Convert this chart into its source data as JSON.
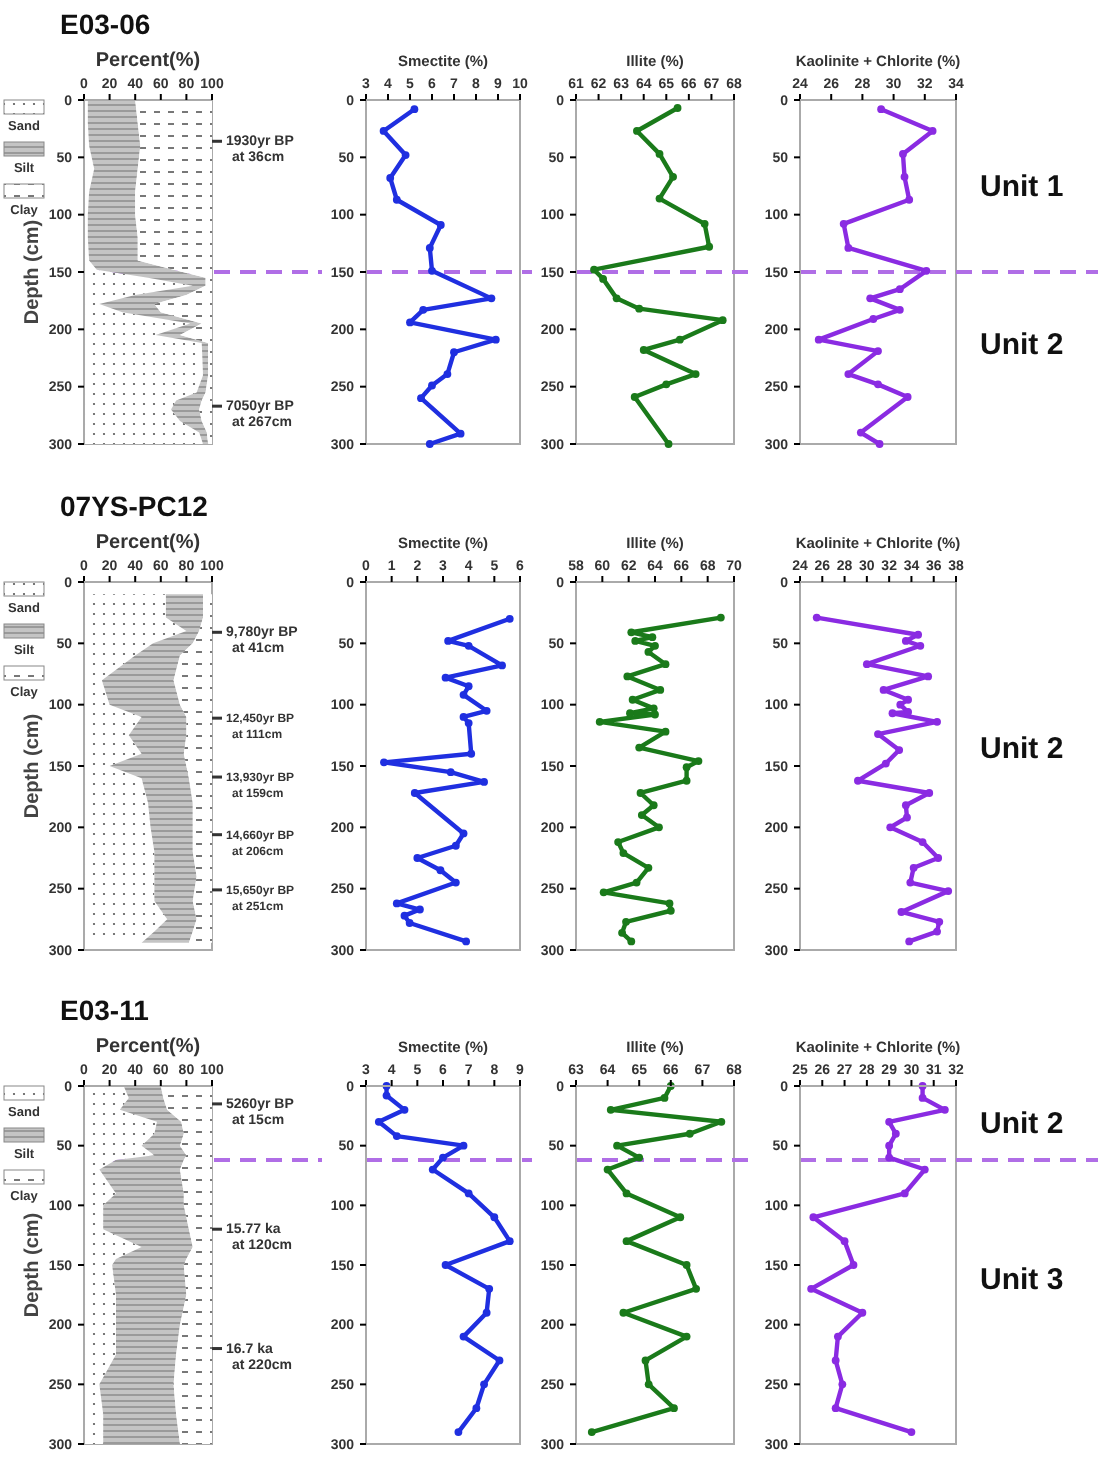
{
  "chart_data": [
    {
      "type": "area",
      "title": "E03-06",
      "xlabel": "Percent(%)",
      "ylabel": "Depth (cm)",
      "orientation": "horizontal",
      "stacked": true,
      "legend": "left",
      "xlim": [
        0,
        100
      ],
      "xticks": [
        0,
        20,
        40,
        60,
        80,
        100
      ],
      "ylim": [
        300,
        0
      ],
      "yticks": [
        0,
        50,
        100,
        150,
        200,
        250,
        300
      ],
      "x": [
        0,
        20,
        40,
        60,
        80,
        100,
        120,
        140,
        148,
        155,
        162,
        170,
        178,
        185,
        195,
        205,
        212,
        240,
        255,
        262,
        270,
        280,
        290,
        300
      ],
      "series": [
        {
          "name": "Sand",
          "color": "#ffffff",
          "values": [
            3,
            3,
            4,
            8,
            4,
            3,
            3,
            4,
            10,
            50,
            85,
            40,
            12,
            30,
            83,
            56,
            92,
            93,
            88,
            72,
            68,
            75,
            90,
            93
          ]
        },
        {
          "name": "Silt",
          "color": "#c4c4c4",
          "values": [
            37,
            39,
            40,
            34,
            36,
            37,
            39,
            38,
            60,
            45,
            10,
            40,
            43,
            30,
            9,
            19,
            5,
            4,
            7,
            20,
            22,
            17,
            6,
            4
          ]
        },
        {
          "name": "Clay",
          "color": "#ffffff",
          "values": [
            60,
            58,
            56,
            58,
            60,
            60,
            58,
            58,
            30,
            5,
            5,
            20,
            45,
            40,
            8,
            25,
            3,
            3,
            5,
            8,
            10,
            8,
            4,
            3
          ]
        }
      ],
      "ref_lines": [
        {
          "axis": "y",
          "value": 150,
          "color": "#b06ee6",
          "line_style": "dashed"
        },
        {
          "axis": "y",
          "value": 36,
          "label": "1930yr BP\nat 36cm"
        },
        {
          "axis": "y",
          "value": 267,
          "label": "7050yr BP\nat 267cm"
        }
      ]
    },
    {
      "type": "line",
      "xlabel": "Smectite (%)",
      "orientation": "horizontal",
      "marker": "circle",
      "xlim": [
        3,
        10
      ],
      "xticks": [
        3,
        4,
        5,
        6,
        7,
        8,
        9,
        10
      ],
      "ylim": [
        300,
        0
      ],
      "yticks": [
        0,
        50,
        100,
        150,
        200,
        250,
        300
      ],
      "x": [
        8,
        27,
        48,
        68,
        87,
        109,
        129,
        149,
        173,
        183,
        194,
        209,
        220,
        239,
        249,
        260,
        291,
        300
      ],
      "series": [
        {
          "color": "#1f2fe0",
          "values": [
            5.2,
            3.8,
            4.8,
            4.1,
            4.4,
            6.4,
            5.9,
            6.0,
            8.7,
            5.6,
            5.0,
            8.9,
            7.0,
            6.7,
            6.0,
            5.5,
            7.3,
            5.9
          ]
        }
      ],
      "ref_lines": [
        {
          "axis": "y",
          "value": 150,
          "color": "#b06ee6",
          "line_style": "dashed"
        }
      ]
    },
    {
      "type": "line",
      "xlabel": "Illite (%)",
      "orientation": "horizontal",
      "marker": "circle",
      "xlim": [
        61,
        68
      ],
      "xticks": [
        61,
        62,
        63,
        64,
        65,
        66,
        67,
        68
      ],
      "ylim": [
        300,
        0
      ],
      "yticks": [
        0,
        50,
        100,
        150,
        200,
        250,
        300
      ],
      "x": [
        7,
        27,
        47,
        67,
        86,
        108,
        128,
        148,
        156,
        173,
        182,
        192,
        209,
        218,
        239,
        248,
        259,
        300
      ],
      "series": [
        {
          "color": "#1a7a1a",
          "values": [
            65.5,
            63.7,
            64.7,
            65.3,
            64.7,
            66.7,
            66.9,
            61.8,
            62.2,
            62.8,
            63.8,
            67.5,
            65.6,
            64.0,
            66.3,
            65.0,
            63.6,
            65.1
          ]
        }
      ],
      "ref_lines": [
        {
          "axis": "y",
          "value": 150,
          "color": "#b06ee6",
          "line_style": "dashed"
        }
      ]
    },
    {
      "type": "line",
      "xlabel": "Kaolinite + Chlorite (%)",
      "orientation": "horizontal",
      "marker": "circle",
      "xlim": [
        24,
        34
      ],
      "xticks": [
        24,
        26,
        28,
        30,
        32,
        34
      ],
      "ylim": [
        300,
        0
      ],
      "yticks": [
        0,
        50,
        100,
        150,
        200,
        250,
        300
      ],
      "x": [
        8,
        27,
        47,
        67,
        87,
        108,
        129,
        149,
        165,
        173,
        183,
        191,
        209,
        219,
        239,
        248,
        259,
        290,
        300
      ],
      "series": [
        {
          "color": "#8a2be2",
          "values": [
            29.2,
            32.5,
            30.6,
            30.7,
            31.0,
            26.8,
            27.1,
            32.1,
            30.4,
            28.5,
            30.4,
            28.7,
            25.2,
            29.0,
            27.1,
            29.0,
            30.9,
            27.9,
            29.1
          ]
        }
      ],
      "annotations": [
        "Unit 1",
        "Unit 2"
      ],
      "ref_lines": [
        {
          "axis": "y",
          "value": 150,
          "color": "#b06ee6",
          "line_style": "dashed"
        }
      ]
    },
    {
      "type": "area",
      "title": "07YS-PC12",
      "xlabel": "Percent(%)",
      "ylabel": "Depth (cm)",
      "orientation": "horizontal",
      "stacked": true,
      "legend": "left",
      "xlim": [
        0,
        100
      ],
      "xticks": [
        0,
        20,
        40,
        60,
        80,
        100
      ],
      "ylim": [
        300,
        0
      ],
      "yticks": [
        0,
        50,
        100,
        150,
        200,
        250,
        300
      ],
      "x": [
        10,
        29,
        40,
        50,
        60,
        80,
        100,
        110,
        125,
        140,
        150,
        160,
        180,
        200,
        220,
        240,
        260,
        275,
        285,
        294
      ],
      "series": [
        {
          "name": "Sand",
          "color": "#ffffff",
          "values": [
            64,
            64,
            80,
            54,
            40,
            14,
            20,
            45,
            35,
            45,
            20,
            45,
            50,
            52,
            55,
            55,
            55,
            65,
            55,
            45
          ]
        },
        {
          "name": "Silt",
          "color": "#c4c4c4",
          "values": [
            29,
            29,
            10,
            31,
            35,
            56,
            55,
            35,
            45,
            33,
            60,
            37,
            35,
            33,
            30,
            33,
            30,
            23,
            30,
            37
          ]
        },
        {
          "name": "Clay",
          "color": "#ffffff",
          "values": [
            7,
            7,
            10,
            15,
            25,
            30,
            25,
            20,
            20,
            22,
            20,
            18,
            15,
            15,
            15,
            12,
            15,
            12,
            15,
            18
          ]
        }
      ],
      "ref_lines": [
        {
          "axis": "y",
          "value": 41,
          "label": "9,780yr BP\nat 41cm"
        },
        {
          "axis": "y",
          "value": 111,
          "label": "12,450yr BP\nat 111cm"
        },
        {
          "axis": "y",
          "value": 159,
          "label": "13,930yr BP\nat 159cm"
        },
        {
          "axis": "y",
          "value": 206,
          "label": "14,660yr BP\nat 206cm"
        },
        {
          "axis": "y",
          "value": 251,
          "label": "15,650yr BP\nat 251cm"
        }
      ]
    },
    {
      "type": "line",
      "xlabel": "Smectite (%)",
      "orientation": "horizontal",
      "marker": "circle",
      "xlim": [
        0,
        6
      ],
      "xticks": [
        0,
        1,
        2,
        3,
        4,
        5,
        6
      ],
      "ylim": [
        300,
        0
      ],
      "yticks": [
        0,
        50,
        100,
        150,
        200,
        250,
        300
      ],
      "x": [
        30,
        48,
        52,
        68,
        78,
        85,
        92,
        105,
        110,
        115,
        140,
        147,
        155,
        163,
        172,
        205,
        215,
        225,
        235,
        245,
        262,
        267,
        272,
        278,
        293
      ],
      "series": [
        {
          "color": "#1f2fe0",
          "values": [
            5.6,
            3.2,
            4.0,
            5.3,
            3.1,
            4.0,
            3.8,
            4.7,
            3.8,
            4.0,
            4.1,
            0.7,
            3.3,
            4.6,
            1.9,
            3.8,
            3.5,
            2.0,
            2.9,
            3.5,
            1.2,
            2.1,
            1.5,
            1.7,
            3.9
          ]
        }
      ]
    },
    {
      "type": "line",
      "xlabel": "Illite (%)",
      "orientation": "horizontal",
      "marker": "circle",
      "xlim": [
        58,
        70
      ],
      "xticks": [
        58,
        60,
        62,
        64,
        66,
        68,
        70
      ],
      "ylim": [
        300,
        0
      ],
      "yticks": [
        0,
        50,
        100,
        150,
        200,
        250,
        300
      ],
      "x": [
        29,
        41,
        45,
        48,
        52,
        57,
        67,
        77,
        88,
        96,
        103,
        107,
        108,
        114,
        122,
        135,
        146,
        151,
        162,
        172,
        182,
        190,
        200,
        212,
        221,
        233,
        245,
        253,
        262,
        268,
        277,
        286,
        293
      ],
      "series": [
        {
          "color": "#1a7a1a",
          "values": [
            69.0,
            62.2,
            63.8,
            62.5,
            64.0,
            63.5,
            64.8,
            61.9,
            64.4,
            62.3,
            63.9,
            62.1,
            64.0,
            59.8,
            64.8,
            62.8,
            67.3,
            66.4,
            66.4,
            62.9,
            63.9,
            63.0,
            64.3,
            61.2,
            61.6,
            63.5,
            62.6,
            60.1,
            65.1,
            65.2,
            61.8,
            61.5,
            62.2
          ]
        }
      ]
    },
    {
      "type": "line",
      "xlabel": "Kaolinite + Chlorite (%)",
      "orientation": "horizontal",
      "marker": "circle",
      "xlim": [
        24,
        38
      ],
      "xticks": [
        24,
        26,
        28,
        30,
        32,
        34,
        36,
        38
      ],
      "ylim": [
        300,
        0
      ],
      "yticks": [
        0,
        50,
        100,
        150,
        200,
        250,
        300
      ],
      "x": [
        29,
        43,
        48,
        52,
        67,
        77,
        88,
        96,
        100,
        106,
        107,
        114,
        124,
        137,
        148,
        162,
        172,
        182,
        192,
        200,
        212,
        225,
        233,
        245,
        252,
        269,
        277,
        285,
        293
      ],
      "series": [
        {
          "color": "#8a2be2",
          "values": [
            25.5,
            34.6,
            33.5,
            34.8,
            30.0,
            35.5,
            31.5,
            33.7,
            33.0,
            33.7,
            32.3,
            36.3,
            31.0,
            32.9,
            31.7,
            29.2,
            35.6,
            33.5,
            33.6,
            32.1,
            35.0,
            36.4,
            34.2,
            33.9,
            37.3,
            33.1,
            36.5,
            36.3,
            33.8
          ]
        }
      ],
      "annotations": [
        "Unit 2"
      ]
    },
    {
      "type": "area",
      "title": "E03-11",
      "xlabel": "Percent(%)",
      "ylabel": "Depth (cm)",
      "orientation": "horizontal",
      "stacked": true,
      "legend": "left",
      "xlim": [
        0,
        100
      ],
      "xticks": [
        0,
        20,
        40,
        60,
        80,
        100
      ],
      "ylim": [
        300,
        0
      ],
      "yticks": [
        0,
        50,
        100,
        150,
        200,
        250,
        300
      ],
      "x": [
        0,
        10,
        20,
        30,
        40,
        50,
        58,
        62,
        70,
        90,
        100,
        120,
        135,
        145,
        150,
        175,
        200,
        225,
        250,
        275,
        300
      ],
      "series": [
        {
          "name": "Sand",
          "color": "#ffffff",
          "values": [
            31,
            35,
            28,
            57,
            55,
            45,
            55,
            25,
            12,
            25,
            15,
            15,
            45,
            25,
            22,
            25,
            25,
            25,
            12,
            15,
            15
          ]
        },
        {
          "name": "Silt",
          "color": "#c4c4c4",
          "values": [
            29,
            27,
            37,
            19,
            23,
            30,
            25,
            53,
            63,
            53,
            63,
            67,
            40,
            55,
            56,
            55,
            50,
            47,
            58,
            57,
            60
          ]
        },
        {
          "name": "Clay",
          "color": "#ffffff",
          "values": [
            40,
            38,
            35,
            24,
            22,
            25,
            20,
            22,
            25,
            22,
            22,
            18,
            15,
            20,
            22,
            20,
            25,
            28,
            30,
            28,
            25
          ]
        }
      ],
      "ref_lines": [
        {
          "axis": "y",
          "value": 62,
          "color": "#b06ee6",
          "line_style": "dashed"
        },
        {
          "axis": "y",
          "value": 15,
          "label": "5260yr BP\nat 15cm"
        },
        {
          "axis": "y",
          "value": 120,
          "label": "15.77 ka\nat 120cm"
        },
        {
          "axis": "y",
          "value": 220,
          "label": "16.7 ka\nat 220cm"
        }
      ]
    },
    {
      "type": "line",
      "xlabel": "Smectite (%)",
      "orientation": "horizontal",
      "marker": "circle",
      "xlim": [
        3,
        9
      ],
      "xticks": [
        3,
        4,
        5,
        6,
        7,
        8,
        9
      ],
      "ylim": [
        300,
        0
      ],
      "yticks": [
        0,
        50,
        100,
        150,
        200,
        250,
        300
      ],
      "x": [
        0,
        8,
        20,
        30,
        42,
        50,
        60,
        70,
        90,
        110,
        130,
        150,
        170,
        190,
        210,
        230,
        250,
        270,
        290
      ],
      "series": [
        {
          "color": "#1f2fe0",
          "values": [
            3.8,
            3.8,
            4.5,
            3.5,
            4.2,
            6.8,
            6.0,
            5.6,
            7.0,
            8.0,
            8.6,
            6.1,
            7.8,
            7.7,
            6.8,
            8.2,
            7.6,
            7.3,
            6.6
          ]
        }
      ],
      "ref_lines": [
        {
          "axis": "y",
          "value": 62,
          "color": "#b06ee6",
          "line_style": "dashed"
        }
      ]
    },
    {
      "type": "line",
      "xlabel": "Illite (%)",
      "orientation": "horizontal",
      "marker": "circle",
      "xlim": [
        63,
        68
      ],
      "xticks": [
        63,
        64,
        65,
        66,
        67,
        68
      ],
      "ylim": [
        300,
        0
      ],
      "yticks": [
        0,
        50,
        100,
        150,
        200,
        250,
        300
      ],
      "x": [
        0,
        10,
        20,
        30,
        40,
        50,
        60,
        70,
        90,
        110,
        130,
        150,
        170,
        190,
        210,
        230,
        250,
        270,
        290
      ],
      "series": [
        {
          "color": "#1a7a1a",
          "values": [
            66.0,
            65.8,
            64.1,
            67.6,
            66.6,
            64.3,
            65.0,
            64.0,
            64.6,
            66.3,
            64.6,
            66.5,
            66.8,
            64.5,
            66.5,
            65.2,
            65.3,
            66.1,
            63.5
          ]
        }
      ],
      "ref_lines": [
        {
          "axis": "y",
          "value": 62,
          "color": "#b06ee6",
          "line_style": "dashed"
        }
      ]
    },
    {
      "type": "line",
      "xlabel": "Kaolinite + Chlorite (%)",
      "orientation": "horizontal",
      "marker": "circle",
      "xlim": [
        25,
        32
      ],
      "xticks": [
        25,
        26,
        27,
        28,
        29,
        30,
        31,
        32
      ],
      "ylim": [
        300,
        0
      ],
      "yticks": [
        0,
        50,
        100,
        150,
        200,
        250,
        300
      ],
      "x": [
        0,
        10,
        20,
        30,
        40,
        50,
        60,
        70,
        90,
        110,
        130,
        150,
        170,
        190,
        210,
        230,
        250,
        270,
        290
      ],
      "series": [
        {
          "color": "#8a2be2",
          "values": [
            30.5,
            30.5,
            31.5,
            29.0,
            29.3,
            29.0,
            29.0,
            30.6,
            29.7,
            25.6,
            27.0,
            27.4,
            25.5,
            27.8,
            26.7,
            26.6,
            26.9,
            26.6,
            30.0
          ]
        }
      ],
      "annotations": [
        "Unit 2",
        "Unit 3"
      ],
      "ref_lines": [
        {
          "axis": "y",
          "value": 62,
          "color": "#b06ee6",
          "line_style": "dashed"
        }
      ]
    }
  ]
}
